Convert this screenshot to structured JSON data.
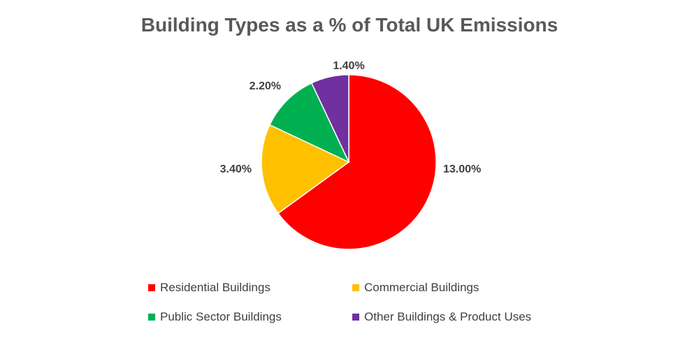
{
  "chart_data": {
    "type": "pie",
    "title": "Building Types as a % of Total UK Emissions",
    "slices": [
      {
        "name": "Residential Buildings",
        "value": 13.0,
        "label": "13.00%",
        "color": "#FF0000"
      },
      {
        "name": "Commercial Buildings",
        "value": 3.4,
        "label": "3.40%",
        "color": "#FFC000"
      },
      {
        "name": "Public Sector Buildings",
        "value": 2.2,
        "label": "2.20%",
        "color": "#00B050"
      },
      {
        "name": "Other Buildings & Product Uses",
        "value": 1.4,
        "label": "1.40%",
        "color": "#7030A0"
      }
    ],
    "legend_position": "bottom"
  }
}
